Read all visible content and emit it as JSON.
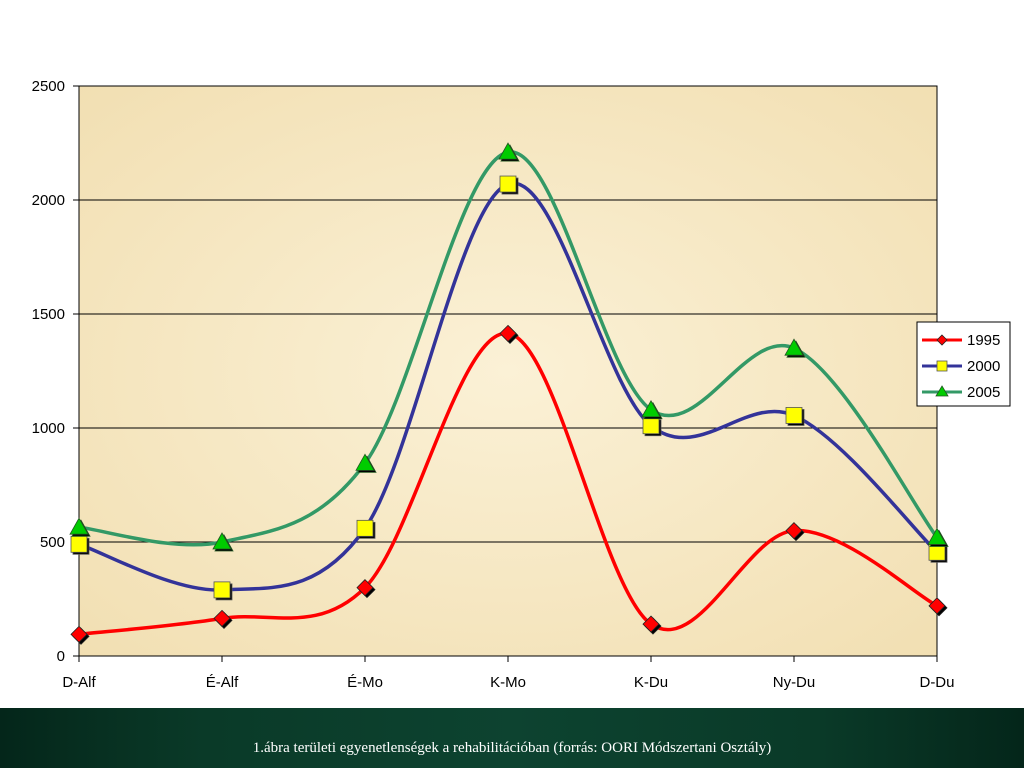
{
  "chart_data": {
    "type": "line",
    "categories": [
      "D-Alf",
      "É-Alf",
      "É-Mo",
      "K-Mo",
      "K-Du",
      "Ny-Du",
      "D-Du"
    ],
    "series": [
      {
        "name": "1995",
        "values": [
          95,
          165,
          300,
          1415,
          140,
          550,
          220
        ],
        "color": "#ff0000",
        "marker": "diamond",
        "marker_color": "#ff0000"
      },
      {
        "name": "2000",
        "values": [
          490,
          290,
          560,
          2070,
          1010,
          1055,
          455
        ],
        "color": "#333399",
        "marker": "square",
        "marker_color": "#ffff00"
      },
      {
        "name": "2005",
        "values": [
          565,
          500,
          845,
          2210,
          1080,
          1350,
          520
        ],
        "color": "#339966",
        "marker": "triangle",
        "marker_color": "#00cc00"
      }
    ],
    "ylim": [
      0,
      2500
    ],
    "yticks": [
      0,
      500,
      1000,
      1500,
      2000,
      2500
    ],
    "grid": true,
    "smooth": true,
    "legend_position": "right",
    "plot_background": "#f5e7c1"
  },
  "caption": "1.ábra területi egyenetlenségek a rehabilitációban (forrás: OORI Módszertani Osztály)"
}
